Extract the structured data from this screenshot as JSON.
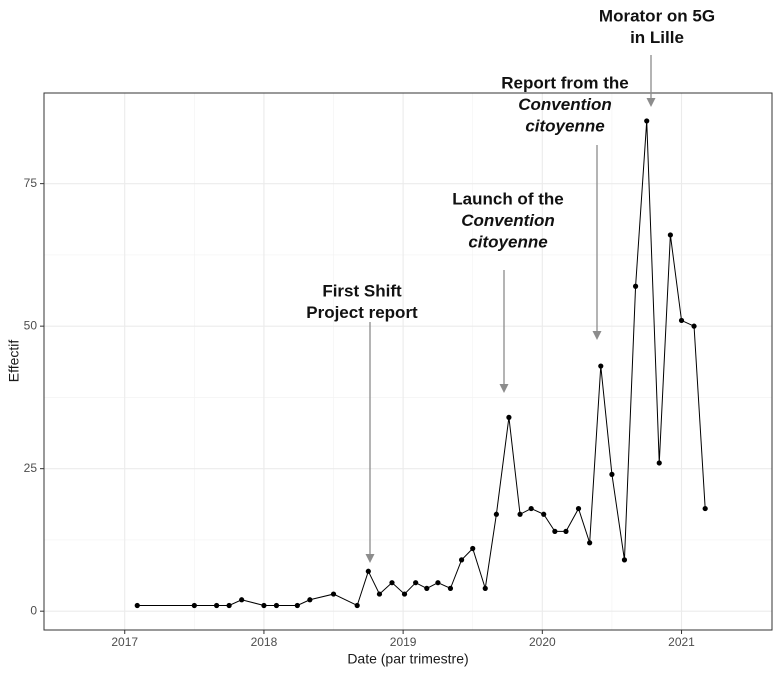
{
  "chart_data": {
    "type": "line",
    "x_label": "Date (par trimestre)",
    "y_label": "Effectif",
    "x": [
      2017.09,
      2017.5,
      2017.66,
      2017.75,
      2017.84,
      2018.0,
      2018.09,
      2018.24,
      2018.33,
      2018.5,
      2018.67,
      2018.75,
      2018.83,
      2018.92,
      2019.01,
      2019.09,
      2019.17,
      2019.25,
      2019.34,
      2019.42,
      2019.5,
      2019.59,
      2019.67,
      2019.76,
      2019.84,
      2019.92,
      2020.01,
      2020.09,
      2020.17,
      2020.26,
      2020.34,
      2020.42,
      2020.5,
      2020.59,
      2020.67,
      2020.75,
      2020.84,
      2020.92,
      2021.0,
      2021.09,
      2021.17
    ],
    "values": [
      1,
      1,
      1,
      1,
      2,
      1,
      1,
      1,
      2,
      3,
      1,
      7,
      3,
      5,
      3,
      5,
      4,
      5,
      4,
      9,
      11,
      4,
      17,
      34,
      17,
      18,
      17,
      14,
      14,
      18,
      12,
      43,
      24,
      9,
      57,
      86,
      26,
      66,
      51,
      50,
      18
    ],
    "color": "#000000",
    "xlim": [
      2016.42,
      2021.65
    ],
    "xticks": [
      2017,
      2018,
      2019,
      2020,
      2021
    ],
    "ylim": [
      -3.3,
      90.9
    ],
    "yticks": [
      0,
      25,
      50,
      75
    ],
    "grid": true,
    "annotations": [
      {
        "text": [
          "First Shift",
          "Project report"
        ]
      },
      {
        "text": [
          "Launch of the",
          "Convention",
          "citoyenne"
        ]
      },
      {
        "text": [
          "Report from the",
          "Convention",
          "citoyenne"
        ]
      },
      {
        "text": [
          "Morator on 5G",
          "in Lille"
        ]
      }
    ]
  }
}
